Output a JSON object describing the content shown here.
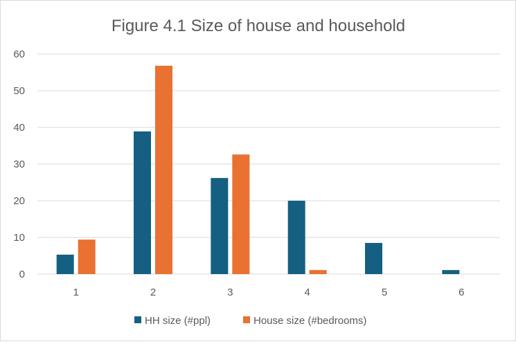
{
  "chart_data": {
    "type": "bar",
    "title": "Figure 4.1 Size of house and household",
    "xlabel": "",
    "ylabel": "",
    "categories": [
      "1",
      "2",
      "3",
      "4",
      "5",
      "6"
    ],
    "series": [
      {
        "name": "HH size (#ppl)",
        "color": "#156082",
        "values": [
          5.3,
          38.9,
          26.2,
          20.0,
          8.5,
          1.1
        ]
      },
      {
        "name": "House size (#bedrooms)",
        "color": "#E97132",
        "values": [
          9.4,
          56.8,
          32.6,
          1.1,
          0,
          0
        ]
      }
    ],
    "ylim": [
      0,
      60
    ],
    "yticks": [
      "0",
      "10",
      "20",
      "30",
      "40",
      "50",
      "60"
    ],
    "ytick_values": [
      0,
      10,
      20,
      30,
      40,
      50,
      60
    ],
    "grid": true,
    "gridline_color": "#d9d9d9",
    "legend_position": "bottom"
  }
}
